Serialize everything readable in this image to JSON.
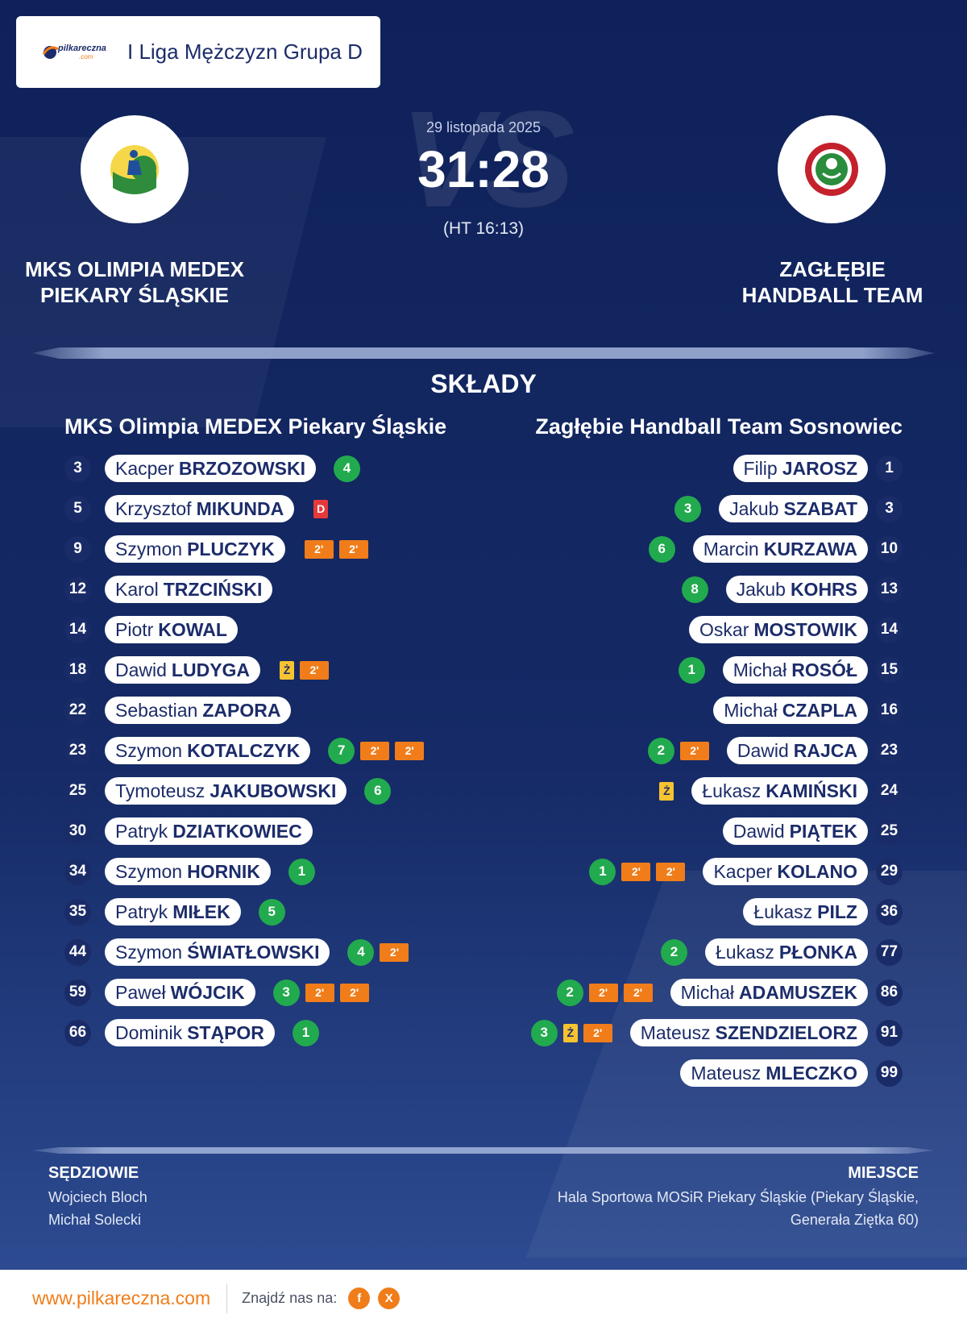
{
  "league": {
    "logo_text": "pilkareczna",
    "logo_subtext": ".com",
    "name": "I Liga Mężczyzn Grupa D"
  },
  "match": {
    "date": "29 listopada 2025",
    "score": "31:28",
    "halftime": "(HT 16:13)",
    "vs": "VS"
  },
  "home_team": {
    "name_line1": "MKS OLIMPIA MEDEX",
    "name_line2": "PIEKARY ŚLĄSKIE",
    "lineup_title": "MKS Olimpia MEDEX Piekary Śląskie"
  },
  "away_team": {
    "name_line1": "ZAGŁĘBIE",
    "name_line2": "HANDBALL TEAM",
    "lineup_title": "Zagłębie Handball Team Sosnowiec"
  },
  "section_title": "SKŁADY",
  "home_players": [
    {
      "number": "3",
      "first": "Kacper",
      "last": "BRZOZOWSKI",
      "goals": "4",
      "yellow": false,
      "red": false,
      "twomin": 0
    },
    {
      "number": "5",
      "first": "Krzysztof",
      "last": "MIKUNDA",
      "goals": "",
      "yellow": false,
      "red": true,
      "twomin": 0
    },
    {
      "number": "9",
      "first": "Szymon",
      "last": "PLUCZYK",
      "goals": "",
      "yellow": false,
      "red": false,
      "twomin": 2
    },
    {
      "number": "12",
      "first": "Karol",
      "last": "TRZCIŃSKI",
      "goals": "",
      "yellow": false,
      "red": false,
      "twomin": 0
    },
    {
      "number": "14",
      "first": "Piotr",
      "last": "KOWAL",
      "goals": "",
      "yellow": false,
      "red": false,
      "twomin": 0
    },
    {
      "number": "18",
      "first": "Dawid",
      "last": "LUDYGA",
      "goals": "",
      "yellow": true,
      "red": false,
      "twomin": 1
    },
    {
      "number": "22",
      "first": "Sebastian",
      "last": "ZAPORA",
      "goals": "",
      "yellow": false,
      "red": false,
      "twomin": 0
    },
    {
      "number": "23",
      "first": "Szymon",
      "last": "KOTALCZYK",
      "goals": "7",
      "yellow": false,
      "red": false,
      "twomin": 2
    },
    {
      "number": "25",
      "first": "Tymoteusz",
      "last": "JAKUBOWSKI",
      "goals": "6",
      "yellow": false,
      "red": false,
      "twomin": 0
    },
    {
      "number": "30",
      "first": "Patryk",
      "last": "DZIATKOWIEC",
      "goals": "",
      "yellow": false,
      "red": false,
      "twomin": 0
    },
    {
      "number": "34",
      "first": "Szymon",
      "last": "HORNIK",
      "goals": "1",
      "yellow": false,
      "red": false,
      "twomin": 0
    },
    {
      "number": "35",
      "first": "Patryk",
      "last": "MIŁEK",
      "goals": "5",
      "yellow": false,
      "red": false,
      "twomin": 0
    },
    {
      "number": "44",
      "first": "Szymon",
      "last": "ŚWIATŁOWSKI",
      "goals": "4",
      "yellow": false,
      "red": false,
      "twomin": 1
    },
    {
      "number": "59",
      "first": "Paweł",
      "last": "WÓJCIK",
      "goals": "3",
      "yellow": false,
      "red": false,
      "twomin": 2
    },
    {
      "number": "66",
      "first": "Dominik",
      "last": "STĄPOR",
      "goals": "1",
      "yellow": false,
      "red": false,
      "twomin": 0
    }
  ],
  "away_players": [
    {
      "number": "1",
      "first": "Filip",
      "last": "JAROSZ",
      "goals": "",
      "yellow": false,
      "red": false,
      "twomin": 0
    },
    {
      "number": "3",
      "first": "Jakub",
      "last": "SZABAT",
      "goals": "3",
      "yellow": false,
      "red": false,
      "twomin": 0
    },
    {
      "number": "10",
      "first": "Marcin",
      "last": "KURZAWA",
      "goals": "6",
      "yellow": false,
      "red": false,
      "twomin": 0
    },
    {
      "number": "13",
      "first": "Jakub",
      "last": "KOHRS",
      "goals": "8",
      "yellow": false,
      "red": false,
      "twomin": 0
    },
    {
      "number": "14",
      "first": "Oskar",
      "last": "MOSTOWIK",
      "goals": "",
      "yellow": false,
      "red": false,
      "twomin": 0
    },
    {
      "number": "15",
      "first": "Michał",
      "last": "ROSÓŁ",
      "goals": "1",
      "yellow": false,
      "red": false,
      "twomin": 0
    },
    {
      "number": "16",
      "first": "Michał",
      "last": "CZAPLA",
      "goals": "",
      "yellow": false,
      "red": false,
      "twomin": 0
    },
    {
      "number": "23",
      "first": "Dawid",
      "last": "RAJCA",
      "goals": "2",
      "yellow": false,
      "red": false,
      "twomin": 1
    },
    {
      "number": "24",
      "first": "Łukasz",
      "last": "KAMIŃSKI",
      "goals": "",
      "yellow": true,
      "red": false,
      "twomin": 0
    },
    {
      "number": "25",
      "first": "Dawid",
      "last": "PIĄTEK",
      "goals": "",
      "yellow": false,
      "red": false,
      "twomin": 0
    },
    {
      "number": "29",
      "first": "Kacper",
      "last": "KOLANO",
      "goals": "1",
      "yellow": false,
      "red": false,
      "twomin": 2
    },
    {
      "number": "36",
      "first": "Łukasz",
      "last": "PILZ",
      "goals": "",
      "yellow": false,
      "red": false,
      "twomin": 0
    },
    {
      "number": "77",
      "first": "Łukasz",
      "last": "PŁONKA",
      "goals": "2",
      "yellow": false,
      "red": false,
      "twomin": 0
    },
    {
      "number": "86",
      "first": "Michał",
      "last": "ADAMUSZEK",
      "goals": "2",
      "yellow": false,
      "red": false,
      "twomin": 2
    },
    {
      "number": "91",
      "first": "Mateusz",
      "last": "SZENDZIELORZ",
      "goals": "3",
      "yellow": true,
      "red": false,
      "twomin": 1
    },
    {
      "number": "99",
      "first": "Mateusz",
      "last": "MLECZKO",
      "goals": "",
      "yellow": false,
      "red": false,
      "twomin": 0
    }
  ],
  "card_labels": {
    "two_min": "2'",
    "yellow": "Ż",
    "red": "D"
  },
  "referees": {
    "title": "SĘDZIOWIE",
    "names": [
      "Wojciech Bloch",
      "Michał Solecki"
    ]
  },
  "venue": {
    "title": "MIEJSCE",
    "line1": "Hala Sportowa MOSiR Piekary Śląskie (Piekary Śląskie,",
    "line2": "Generała Ziętka 60)"
  },
  "footer": {
    "site": "www.pilkareczna.com",
    "find_us": "Znajdź nas na:",
    "facebook": "f",
    "x": "X"
  },
  "colors": {
    "background": "#13265f",
    "goal": "#22aa4e",
    "two_min": "#f07d1a",
    "yellow": "#f7c330",
    "red": "#e63a3a",
    "brand": "#f07d1a"
  }
}
